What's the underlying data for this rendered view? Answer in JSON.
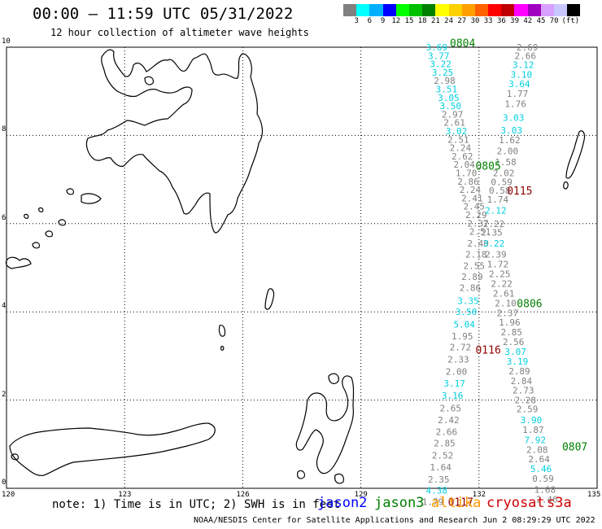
{
  "header": {
    "title": "00:00 – 11:59 UTC 05/31/2022",
    "subtitle": "12 hour collection of altimeter wave heights"
  },
  "colorbar": {
    "colors": [
      "#808080",
      "#00ffff",
      "#00b0ff",
      "#0000ff",
      "#00ff00",
      "#00c000",
      "#008000",
      "#ffff00",
      "#ffd000",
      "#ffa000",
      "#ff6000",
      "#ff0000",
      "#c00000",
      "#ff00ff",
      "#a000c0",
      "#d8a0ff",
      "#c8c8ff",
      "#000000"
    ],
    "labels": [
      "3",
      "6",
      "9",
      "12",
      "15",
      "18",
      "21",
      "24",
      "27",
      "30",
      "33",
      "36",
      "39",
      "42",
      "45",
      "70",
      "(ft)"
    ]
  },
  "axes": {
    "lat_labels": [
      "10",
      "8",
      "6",
      "4",
      "2",
      "0"
    ],
    "lon_labels": [
      "120",
      "123",
      "126",
      "129",
      "132",
      "135"
    ]
  },
  "tracks": [
    {
      "label": "0804",
      "color": "#008000",
      "points": [
        {
          "v": "3.69",
          "lon": 130.9,
          "lat": 10.0,
          "c": "#00d0e0"
        },
        {
          "v": "3.77",
          "lon": 130.95,
          "lat": 9.81,
          "c": "#00d0e0"
        },
        {
          "v": "3.22",
          "lon": 131.0,
          "lat": 9.62,
          "c": "#00d0e0"
        },
        {
          "v": "3.25",
          "lon": 131.05,
          "lat": 9.43,
          "c": "#00d0e0"
        },
        {
          "v": "2.98",
          "lon": 131.1,
          "lat": 9.24,
          "c": "#808080"
        },
        {
          "v": "3.51",
          "lon": 131.15,
          "lat": 9.05,
          "c": "#00d0e0"
        },
        {
          "v": "3.05",
          "lon": 131.2,
          "lat": 8.86,
          "c": "#00d0e0"
        },
        {
          "v": "3.50",
          "lon": 131.25,
          "lat": 8.67,
          "c": "#00d0e0"
        },
        {
          "v": "2.97",
          "lon": 131.3,
          "lat": 8.48,
          "c": "#808080"
        },
        {
          "v": "2.61",
          "lon": 131.35,
          "lat": 8.29,
          "c": "#808080"
        },
        {
          "v": "3.02",
          "lon": 131.4,
          "lat": 8.1,
          "c": "#00d0e0"
        },
        {
          "v": "2.51",
          "lon": 131.45,
          "lat": 7.91,
          "c": "#808080"
        },
        {
          "v": "2.24",
          "lon": 131.5,
          "lat": 7.72,
          "c": "#808080"
        },
        {
          "v": "2.62",
          "lon": 131.55,
          "lat": 7.53,
          "c": "#808080"
        },
        {
          "v": "2.04",
          "lon": 131.6,
          "lat": 7.34,
          "c": "#808080"
        },
        {
          "v": "1.70",
          "lon": 131.65,
          "lat": 7.15,
          "c": "#808080"
        },
        {
          "v": "2.86",
          "lon": 131.7,
          "lat": 6.96,
          "c": "#808080"
        },
        {
          "v": "2.24",
          "lon": 131.75,
          "lat": 6.77,
          "c": "#808080"
        },
        {
          "v": "2.41",
          "lon": 131.8,
          "lat": 6.58,
          "c": "#808080"
        },
        {
          "v": "2.45",
          "lon": 131.85,
          "lat": 6.39,
          "c": "#808080"
        },
        {
          "v": "2.29",
          "lon": 131.9,
          "lat": 6.2,
          "c": "#808080"
        },
        {
          "v": "2.37",
          "lon": 131.95,
          "lat": 6.01,
          "c": "#808080"
        },
        {
          "v": "2.51",
          "lon": 132.0,
          "lat": 5.82,
          "c": "#808080"
        },
        {
          "v": "2.40",
          "lon": 131.95,
          "lat": 5.55,
          "c": "#808080"
        },
        {
          "v": "2.18",
          "lon": 131.9,
          "lat": 5.3,
          "c": "#808080"
        },
        {
          "v": "2.55",
          "lon": 131.85,
          "lat": 5.05,
          "c": "#808080"
        },
        {
          "v": "2.89",
          "lon": 131.8,
          "lat": 4.8,
          "c": "#808080"
        },
        {
          "v": "2.86",
          "lon": 131.75,
          "lat": 4.55,
          "c": "#808080"
        },
        {
          "v": "3.35",
          "lon": 131.7,
          "lat": 4.25,
          "c": "#00d0e0"
        },
        {
          "v": "3.50",
          "lon": 131.65,
          "lat": 4.0,
          "c": "#00d0e0"
        },
        {
          "v": "5.04",
          "lon": 131.6,
          "lat": 3.72,
          "c": "#00d0e0"
        },
        {
          "v": "1.95",
          "lon": 131.55,
          "lat": 3.45,
          "c": "#808080"
        },
        {
          "v": "2.72",
          "lon": 131.5,
          "lat": 3.2,
          "c": "#808080"
        },
        {
          "v": "2.33",
          "lon": 131.45,
          "lat": 2.92,
          "c": "#808080"
        },
        {
          "v": "2.00",
          "lon": 131.4,
          "lat": 2.65,
          "c": "#808080"
        },
        {
          "v": "3.17",
          "lon": 131.35,
          "lat": 2.38,
          "c": "#00d0e0"
        },
        {
          "v": "3.16",
          "lon": 131.3,
          "lat": 2.1,
          "c": "#00d0e0"
        },
        {
          "v": "2.65",
          "lon": 131.25,
          "lat": 1.82,
          "c": "#808080"
        },
        {
          "v": "2.42",
          "lon": 131.2,
          "lat": 1.55,
          "c": "#808080"
        },
        {
          "v": "2.66",
          "lon": 131.15,
          "lat": 1.28,
          "c": "#808080"
        },
        {
          "v": "2.85",
          "lon": 131.1,
          "lat": 1.02,
          "c": "#808080"
        },
        {
          "v": "2.52",
          "lon": 131.05,
          "lat": 0.75,
          "c": "#808080"
        },
        {
          "v": "1.64",
          "lon": 131.0,
          "lat": 0.48,
          "c": "#808080"
        },
        {
          "v": "2.35",
          "lon": 130.95,
          "lat": 0.2,
          "c": "#808080"
        },
        {
          "v": "4.38",
          "lon": 130.9,
          "lat": -0.05,
          "c": "#00d0e0"
        },
        {
          "v": "1.79",
          "lon": 130.8,
          "lat": -0.3,
          "c": "#808080"
        }
      ]
    },
    {
      "label": "0805",
      "color": "#008000",
      "points": [
        {
          "v": "2.69",
          "lon": 133.2,
          "lat": 10.0,
          "c": "#808080"
        },
        {
          "v": "2.66",
          "lon": 133.15,
          "lat": 9.81,
          "c": "#808080"
        },
        {
          "v": "3.12",
          "lon": 133.1,
          "lat": 9.6,
          "c": "#00d0e0"
        },
        {
          "v": "3.10",
          "lon": 133.05,
          "lat": 9.38,
          "c": "#00d0e0"
        },
        {
          "v": "3.64",
          "lon": 133.0,
          "lat": 9.17,
          "c": "#00d0e0"
        },
        {
          "v": "1.77",
          "lon": 132.95,
          "lat": 8.95,
          "c": "#808080"
        },
        {
          "v": "1.76",
          "lon": 132.9,
          "lat": 8.72,
          "c": "#808080"
        },
        {
          "v": "3.03",
          "lon": 132.85,
          "lat": 8.4,
          "c": "#00d0e0"
        },
        {
          "v": "3.03",
          "lon": 132.8,
          "lat": 8.12,
          "c": "#00d0e0"
        },
        {
          "v": "1.62",
          "lon": 132.75,
          "lat": 7.9,
          "c": "#808080"
        },
        {
          "v": "2.00",
          "lon": 132.7,
          "lat": 7.65,
          "c": "#808080"
        },
        {
          "v": "1.58",
          "lon": 132.65,
          "lat": 7.4,
          "c": "#808080"
        },
        {
          "v": "2.02",
          "lon": 132.6,
          "lat": 7.15,
          "c": "#808080"
        },
        {
          "v": "0.59",
          "lon": 132.55,
          "lat": 6.95,
          "c": "#808080"
        },
        {
          "v": "0.58",
          "lon": 132.5,
          "lat": 6.75,
          "c": "#808080"
        },
        {
          "v": "1.74",
          "lon": 132.45,
          "lat": 6.55,
          "c": "#808080"
        },
        {
          "v": "2.12",
          "lon": 132.4,
          "lat": 6.3,
          "c": "#00d0e0"
        },
        {
          "v": "2.22",
          "lon": 132.35,
          "lat": 6.0,
          "c": "#808080"
        },
        {
          "v": "2.35",
          "lon": 132.3,
          "lat": 5.8,
          "c": "#808080"
        },
        {
          "v": "3.22",
          "lon": 132.35,
          "lat": 5.55,
          "c": "#00d0e0"
        },
        {
          "v": "2.39",
          "lon": 132.4,
          "lat": 5.3,
          "c": "#808080"
        },
        {
          "v": "1.72",
          "lon": 132.45,
          "lat": 5.08,
          "c": "#808080"
        },
        {
          "v": "2.25",
          "lon": 132.5,
          "lat": 4.86,
          "c": "#808080"
        },
        {
          "v": "2.22",
          "lon": 132.55,
          "lat": 4.64,
          "c": "#808080"
        },
        {
          "v": "2.61",
          "lon": 132.6,
          "lat": 4.42,
          "c": "#808080"
        },
        {
          "v": "2.10",
          "lon": 132.65,
          "lat": 4.2,
          "c": "#808080"
        },
        {
          "v": "2.37",
          "lon": 132.7,
          "lat": 3.98,
          "c": "#808080"
        },
        {
          "v": "1.96",
          "lon": 132.75,
          "lat": 3.76,
          "c": "#808080"
        },
        {
          "v": "2.85",
          "lon": 132.8,
          "lat": 3.54,
          "c": "#808080"
        },
        {
          "v": "2.56",
          "lon": 132.85,
          "lat": 3.32,
          "c": "#808080"
        },
        {
          "v": "3.07",
          "lon": 132.9,
          "lat": 3.1,
          "c": "#00d0e0"
        },
        {
          "v": "3.19",
          "lon": 132.95,
          "lat": 2.88,
          "c": "#00d0e0"
        },
        {
          "v": "2.89",
          "lon": 133.0,
          "lat": 2.66,
          "c": "#808080"
        },
        {
          "v": "2.84",
          "lon": 133.05,
          "lat": 2.44,
          "c": "#808080"
        },
        {
          "v": "2.73",
          "lon": 133.1,
          "lat": 2.22,
          "c": "#808080"
        },
        {
          "v": "2.28",
          "lon": 133.15,
          "lat": 2.0,
          "c": "#808080"
        },
        {
          "v": "2.59",
          "lon": 133.2,
          "lat": 1.8,
          "c": "#808080"
        },
        {
          "v": "3.90",
          "lon": 133.3,
          "lat": 1.55,
          "c": "#00d0e0"
        },
        {
          "v": "1.87",
          "lon": 133.35,
          "lat": 1.33,
          "c": "#808080"
        },
        {
          "v": "7.92",
          "lon": 133.4,
          "lat": 1.1,
          "c": "#00d0e0"
        },
        {
          "v": "2.08",
          "lon": 133.45,
          "lat": 0.88,
          "c": "#808080"
        },
        {
          "v": "2.64",
          "lon": 133.5,
          "lat": 0.66,
          "c": "#808080"
        },
        {
          "v": "5.46",
          "lon": 133.55,
          "lat": 0.44,
          "c": "#00d0e0"
        },
        {
          "v": "0.59",
          "lon": 133.6,
          "lat": 0.22,
          "c": "#808080"
        },
        {
          "v": "1.68",
          "lon": 133.65,
          "lat": -0.03,
          "c": "#808080"
        },
        {
          "v": "2.46",
          "lon": 133.7,
          "lat": -0.25,
          "c": "#808080"
        }
      ]
    }
  ],
  "track_labels": [
    {
      "text": "0804",
      "lon": 131.55,
      "lat": 10.1,
      "color": "#008000"
    },
    {
      "text": "0805",
      "lon": 132.2,
      "lat": 7.32,
      "color": "#008000"
    },
    {
      "text": "0115",
      "lon": 133.0,
      "lat": 6.75,
      "color": "#900000"
    },
    {
      "text": "0806",
      "lon": 133.25,
      "lat": 4.2,
      "color": "#008000"
    },
    {
      "text": "0116",
      "lon": 132.2,
      "lat": 3.15,
      "color": "#900000"
    },
    {
      "text": "0807",
      "lon": 134.4,
      "lat": 0.95,
      "color": "#008000"
    },
    {
      "text": "0117",
      "lon": 131.5,
      "lat": -0.3,
      "color": "#900000"
    }
  ],
  "note": "note: 1) Time is in UTC; 2) SWH is in feet",
  "legend": [
    {
      "name": "jason2",
      "color": "#0000ff"
    },
    {
      "name": "jason3",
      "color": "#008000"
    },
    {
      "name": "altika",
      "color": "#ff9900"
    },
    {
      "name": "cryosat",
      "color": "#cc0000"
    },
    {
      "name": "s3a",
      "color": "#cc0000"
    }
  ],
  "footer": "NOAA/NESDIS Center for Satellite Applications and Research   Jun  2 08:29:29 UTC 2022"
}
